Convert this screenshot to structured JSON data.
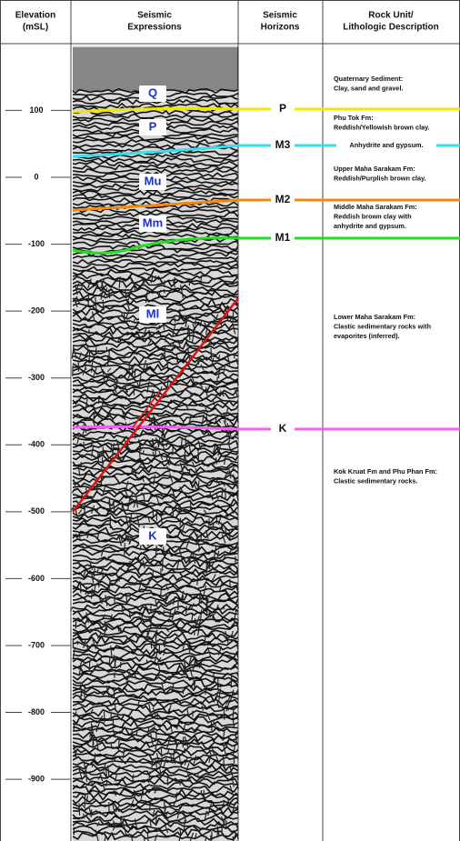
{
  "header": {
    "elevation": [
      "Elevation",
      "(mSL)"
    ],
    "seismic": [
      "Seismic",
      "Expressions"
    ],
    "horizons": [
      "Seismic",
      "Horizons"
    ],
    "description": [
      "Rock Unit/",
      "Lithologic Description"
    ]
  },
  "elevation_ticks": [
    100,
    0,
    -100,
    -200,
    -300,
    -400,
    -500,
    -600,
    -700,
    -800,
    -900
  ],
  "units": [
    "Q",
    "P",
    "Mu",
    "Mm",
    "Ml",
    "K"
  ],
  "horizons": [
    "P",
    "M3",
    "M2",
    "M1",
    "K"
  ],
  "descriptions": [
    [
      "Quaternary Sediment:",
      "Clay, sand and gravel."
    ],
    [
      "Phu Tok Fm:",
      "Reddish/Yellowish brown clay."
    ],
    [
      "Anhydrite and gypsum."
    ],
    [
      "Upper Maha Sarakam Fm:",
      "Reddish/Purplish brown clay."
    ],
    [
      "Middle Maha Sarakam Fm:",
      "Reddish brown clay with",
      "anhydrite and gypsum."
    ],
    [
      "Lower Maha Sarakam Fm:",
      "Clastic sedimentary rocks with",
      "evaporites (inferred)."
    ],
    [
      "Kok Kruat Fm and Phu Phan Fm:",
      "Clastic sedimentary rocks."
    ]
  ]
}
